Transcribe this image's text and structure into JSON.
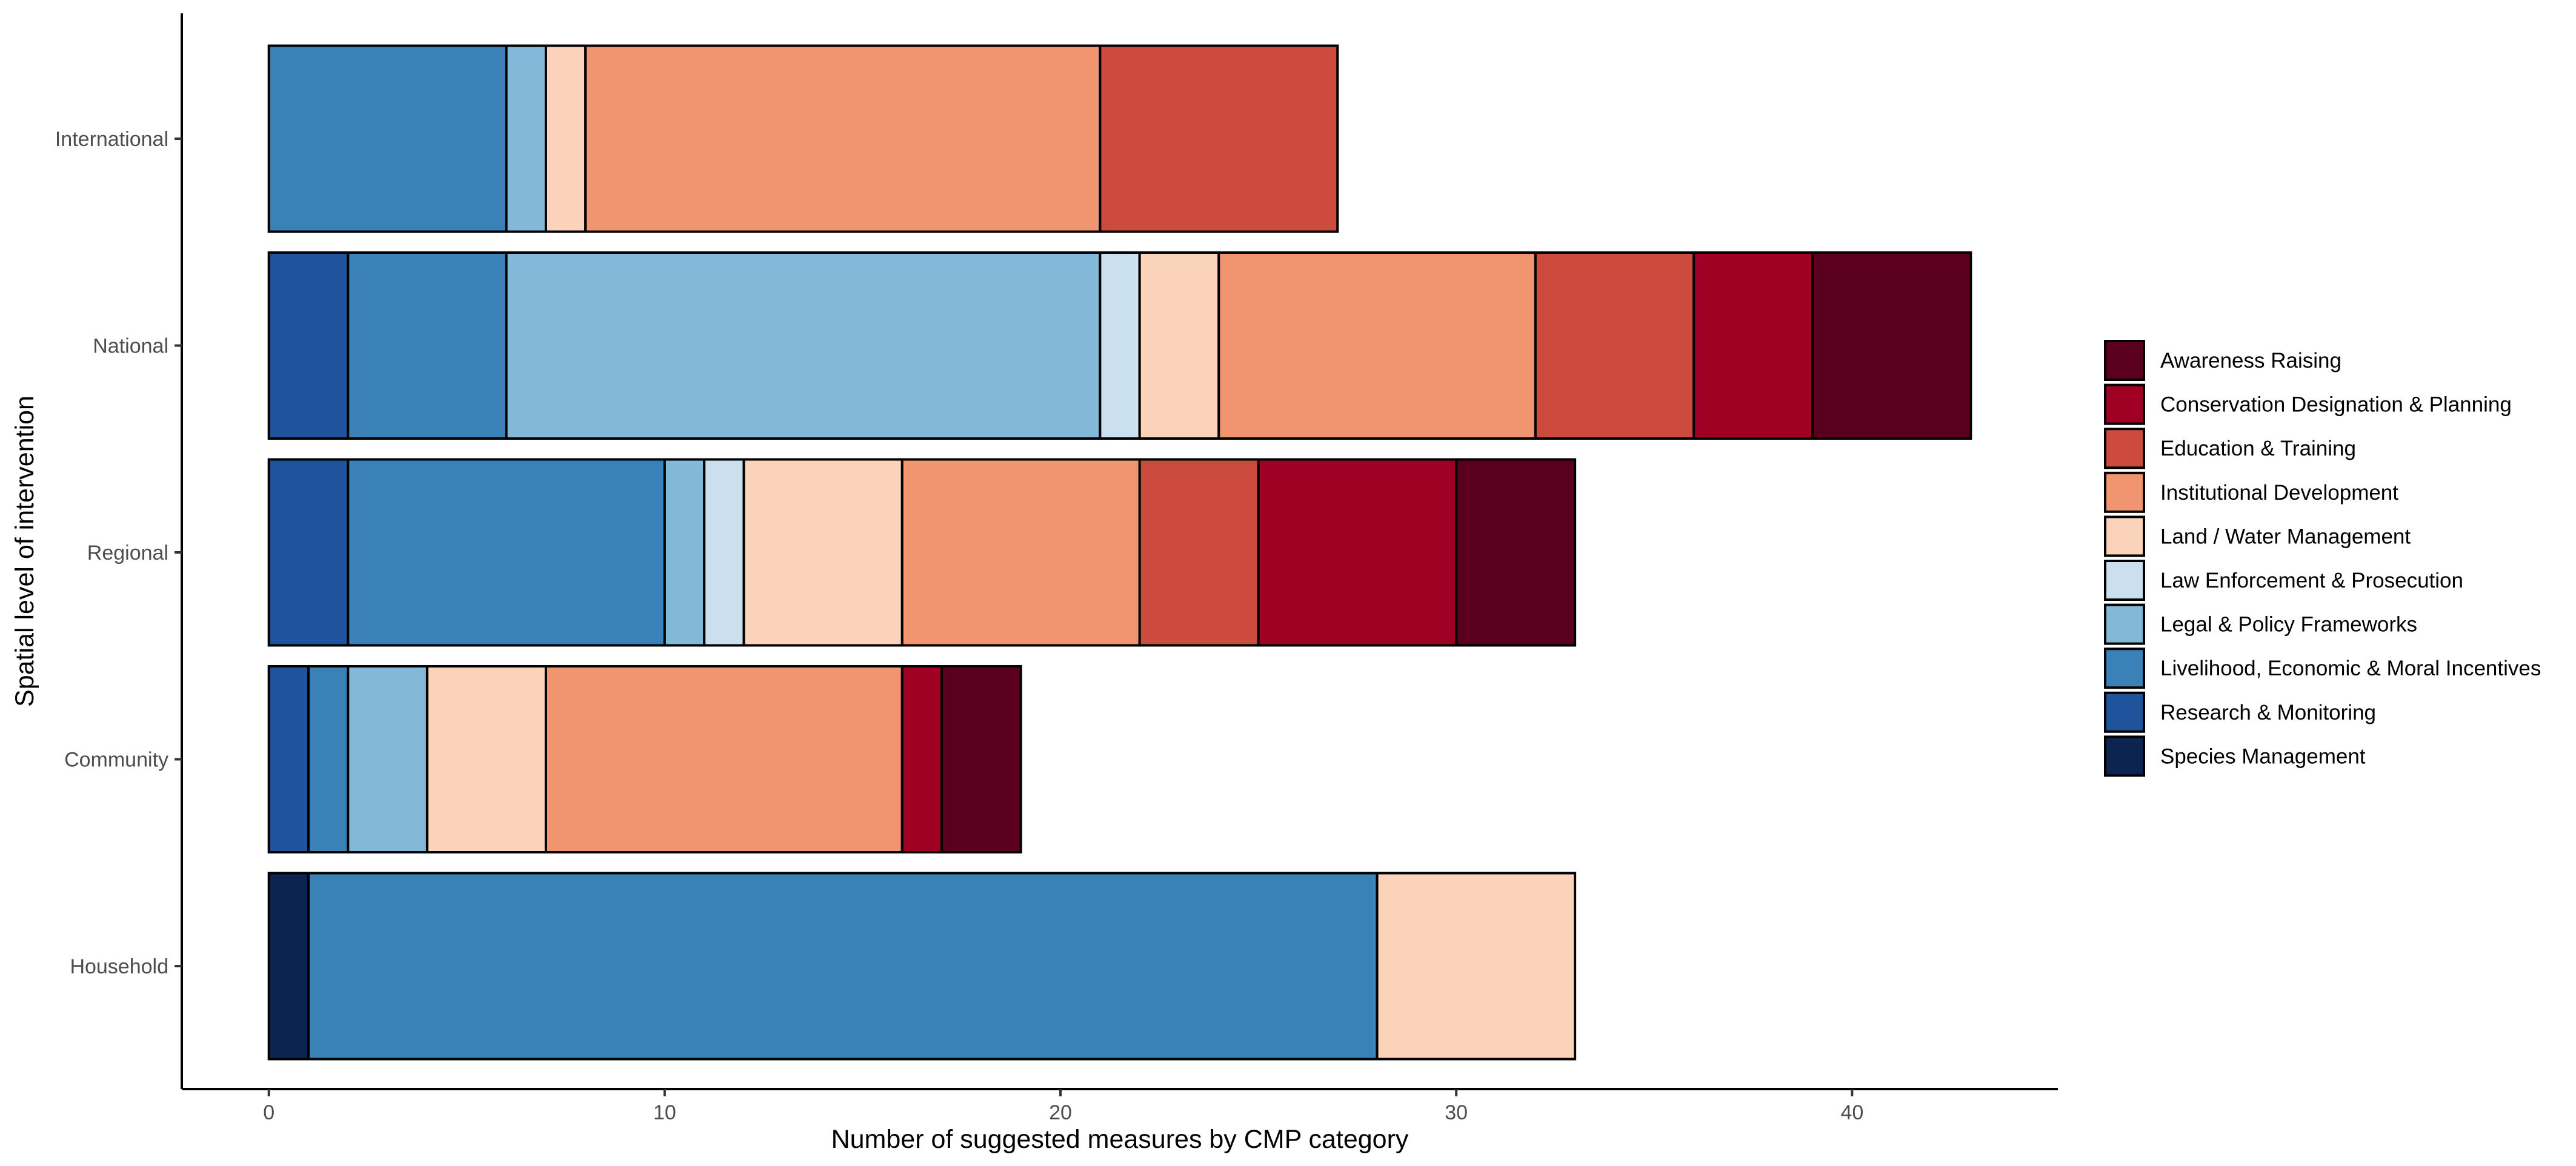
{
  "chart_data": {
    "type": "bar",
    "orientation": "horizontal",
    "stacked": true,
    "xlabel": "Number of suggested measures by CMP category",
    "ylabel": "Spatial level of intervention",
    "xlim": [
      -2.2,
      45.2
    ],
    "xticks": [
      0,
      10,
      20,
      30,
      40
    ],
    "categories": [
      "International",
      "National",
      "Regional",
      "Community",
      "Household"
    ],
    "grid": false,
    "legend_position": "right",
    "series": [
      {
        "name": "Species Management",
        "color": "#0b2450",
        "values": [
          0,
          0,
          0,
          0,
          1
        ]
      },
      {
        "name": "Research & Monitoring",
        "color": "#1f539b",
        "values": [
          0,
          2,
          2,
          1,
          0
        ]
      },
      {
        "name": "Livelihood, Economic & Moral Incentives",
        "color": "#3a81b7",
        "values": [
          6,
          4,
          8,
          1,
          27
        ]
      },
      {
        "name": "Legal & Policy Frameworks",
        "color": "#83b8d8",
        "values": [
          1,
          15,
          1,
          2,
          0
        ]
      },
      {
        "name": "Law Enforcement & Prosecution",
        "color": "#cae0ee",
        "values": [
          0,
          1,
          1,
          0,
          0
        ]
      },
      {
        "name": "Land / Water Management",
        "color": "#fbd3bb",
        "values": [
          1,
          2,
          4,
          3,
          5
        ]
      },
      {
        "name": "Institutional Development",
        "color": "#f09570",
        "values": [
          13,
          8,
          6,
          9,
          0
        ]
      },
      {
        "name": "Education & Training",
        "color": "#cd4a3e",
        "values": [
          6,
          4,
          3,
          0,
          0
        ]
      },
      {
        "name": "Conservation Designation & Planning",
        "color": "#a00024",
        "values": [
          0,
          3,
          5,
          1,
          0
        ]
      },
      {
        "name": "Awareness Raising",
        "color": "#5a001e",
        "values": [
          0,
          4,
          3,
          2,
          0
        ]
      }
    ],
    "legend_order": [
      "Awareness Raising",
      "Conservation Designation & Planning",
      "Education & Training",
      "Institutional Development",
      "Land / Water Management",
      "Law Enforcement & Prosecution",
      "Legal & Policy Frameworks",
      "Livelihood, Economic & Moral Incentives",
      "Research & Monitoring",
      "Species Management"
    ]
  }
}
